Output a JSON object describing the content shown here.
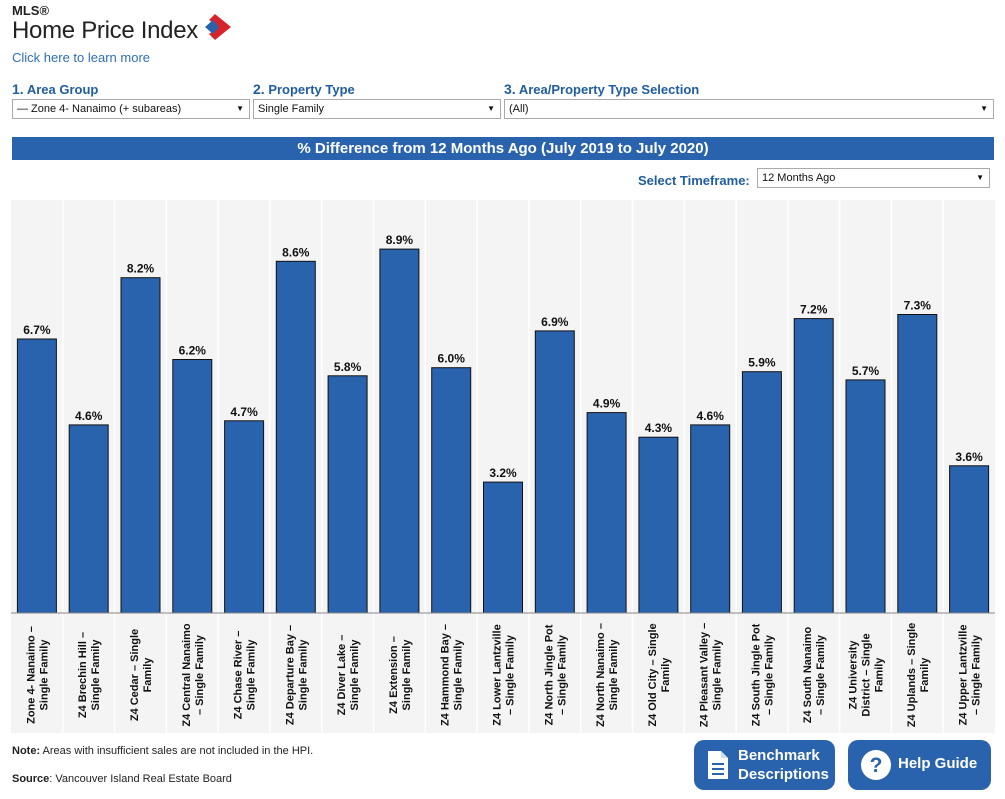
{
  "header": {
    "logo_mls": "MLS®",
    "logo_title": "Home Price Index",
    "learn_link": "Click here to learn more"
  },
  "filters": {
    "area_group": {
      "number": "1.",
      "label": "Area Group",
      "value": "— Zone 4- Nanaimo (+ subareas)"
    },
    "property_type": {
      "number": "2.",
      "label": "Property Type",
      "value": "Single Family"
    },
    "selection": {
      "number": "3.",
      "label": "Area/Property Type Selection",
      "value": "(All)"
    }
  },
  "banner": "% Difference from 12 Months Ago (July 2019 to July 2020)",
  "timeframe": {
    "label": "Select Timeframe:",
    "value": "12 Months Ago"
  },
  "colors": {
    "bar": "#2a63ad",
    "accent": "#1f5d9f",
    "logo_red": "#d5252b",
    "logo_blue": "#2a63ad"
  },
  "chart_data": {
    "type": "bar",
    "categories": [
      "Zone 4- Nanaimo – Single Family",
      "Z4 Brechin Hill – Single Family",
      "Z4 Cedar – Single Family",
      "Z4 Central Nanaimo – Single Family",
      "Z4 Chase River – Single Family",
      "Z4 Departure Bay – Single Family",
      "Z4 Diver Lake – Single Family",
      "Z4 Extension – Single Family",
      "Z4 Hammond Bay – Single Family",
      "Z4 Lower Lantzville – Single Family",
      "Z4 North Jingle Pot – Single Family",
      "Z4 North Nanaimo – Single Family",
      "Z4 Old City – Single Family",
      "Z4 Pleasant Valley – Single Family",
      "Z4 South Jingle Pot – Single Family",
      "Z4 South Nanaimo – Single Family",
      "Z4 University District – Single Family",
      "Z4 Uplands – Single Family",
      "Z4 Upper Lantzville – Single Family"
    ],
    "category_lines": [
      [
        "Zone 4- Nanaimo –",
        "Single Family"
      ],
      [
        "Z4 Brechin Hill –",
        "Single Family"
      ],
      [
        "Z4 Cedar – Single",
        "Family"
      ],
      [
        "Z4 Central Nanaimo",
        "– Single Family"
      ],
      [
        "Z4 Chase River –",
        "Single Family"
      ],
      [
        "Z4 Departure Bay –",
        "Single Family"
      ],
      [
        "Z4 Diver Lake –",
        "Single Family"
      ],
      [
        "Z4 Extension –",
        "Single Family"
      ],
      [
        "Z4 Hammond Bay –",
        "Single Family"
      ],
      [
        "Z4 Lower Lantzville",
        "– Single Family"
      ],
      [
        "Z4 North Jingle Pot",
        "– Single Family"
      ],
      [
        "Z4 North Nanaimo –",
        "Single Family"
      ],
      [
        "Z4 Old City – Single",
        "Family"
      ],
      [
        "Z4 Pleasant Valley –",
        "Single Family"
      ],
      [
        "Z4 South Jingle Pot",
        "– Single Family"
      ],
      [
        "Z4 South Nanaimo",
        "– Single Family"
      ],
      [
        "Z4 University",
        "District – Single",
        "Family"
      ],
      [
        "Z4 Uplands – Single",
        "Family"
      ],
      [
        "Z4 Upper Lantzville",
        "– Single Family"
      ]
    ],
    "values": [
      6.7,
      4.6,
      8.2,
      6.2,
      4.7,
      8.6,
      5.8,
      8.9,
      6.0,
      3.2,
      6.9,
      4.9,
      4.3,
      4.6,
      5.9,
      7.2,
      5.7,
      7.3,
      3.6
    ],
    "labels": [
      "6.7%",
      "4.6%",
      "8.2%",
      "6.2%",
      "4.7%",
      "8.6%",
      "5.8%",
      "8.9%",
      "6.0%",
      "3.2%",
      "6.9%",
      "4.9%",
      "4.3%",
      "4.6%",
      "5.9%",
      "7.2%",
      "5.7%",
      "7.3%",
      "3.6%"
    ],
    "ylim": [
      0,
      10.1
    ],
    "grid": false,
    "title": "",
    "xlabel": "",
    "ylabel": ""
  },
  "footer": {
    "note_label": "Note:",
    "note_text": " Areas with insufficient sales are not included in the HPI.",
    "source_label": "Source",
    "source_text": ": Vancouver Island Real Estate Board"
  },
  "buttons": {
    "benchmark_line1": "Benchmark",
    "benchmark_line2": "Descriptions",
    "help": "Help Guide"
  }
}
